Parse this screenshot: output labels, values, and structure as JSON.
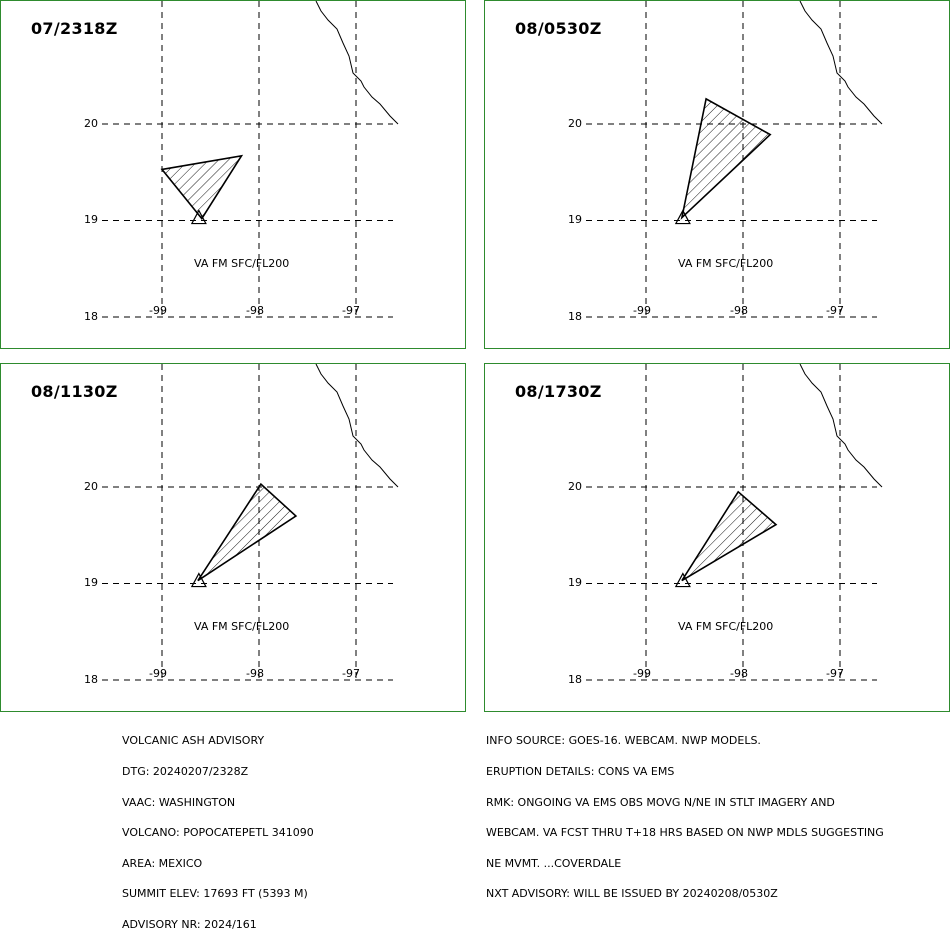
{
  "panels": [
    {
      "time": "07/2318Z",
      "va_label": "VA FM SFC/FL200",
      "ash_polygon": [
        [
          -99.0,
          19.53
        ],
        [
          -98.18,
          19.67
        ],
        [
          -98.59,
          19.02
        ]
      ],
      "volcano": [
        -98.62,
        19.02
      ]
    },
    {
      "time": "08/0530Z",
      "va_label": "VA FM SFC/FL200",
      "ash_polygon": [
        [
          -98.63,
          19.03
        ],
        [
          -98.38,
          20.26
        ],
        [
          -97.72,
          19.89
        ]
      ],
      "volcano": [
        -98.62,
        19.02
      ]
    },
    {
      "time": "08/1130Z",
      "va_label": "VA FM SFC/FL200",
      "ash_polygon": [
        [
          -98.63,
          19.03
        ],
        [
          -97.98,
          20.03
        ],
        [
          -97.62,
          19.7
        ]
      ],
      "volcano": [
        -98.62,
        19.02
      ]
    },
    {
      "time": "08/1730Z",
      "va_label": "VA FM SFC/FL200",
      "ash_polygon": [
        [
          -98.63,
          19.03
        ],
        [
          -98.05,
          19.95
        ],
        [
          -97.66,
          19.61
        ]
      ],
      "volcano": [
        -98.62,
        19.02
      ]
    }
  ],
  "grid": {
    "lat_labels": [
      "20",
      "19",
      "18"
    ],
    "lon_labels": [
      "-99",
      "-98",
      "-97"
    ]
  },
  "advisory_left": [
    "VOLCANIC ASH ADVISORY",
    "DTG: 20240207/2328Z",
    "VAAC: WASHINGTON",
    "VOLCANO: POPOCATEPETL 341090",
    "AREA: MEXICO",
    "SUMMIT ELEV: 17693 FT (5393 M)",
    "ADVISORY NR: 2024/161"
  ],
  "advisory_right": [
    "INFO SOURCE: GOES-16. WEBCAM. NWP MODELS.",
    "ERUPTION DETAILS: CONS VA EMS",
    "RMK: ONGOING VA EMS OBS MOVG N/NE IN STLT IMAGERY AND",
    "WEBCAM. VA FCST THRU T+18 HRS BASED ON NWP MDLS SUGGESTING",
    "NE MVMT. ...COVERDALE",
    "NXT ADVISORY: WILL BE ISSUED BY 20240208/0530Z"
  ],
  "colors": {
    "frame": "#2e8b2e",
    "lines": "#000000",
    "background": "#ffffff"
  }
}
